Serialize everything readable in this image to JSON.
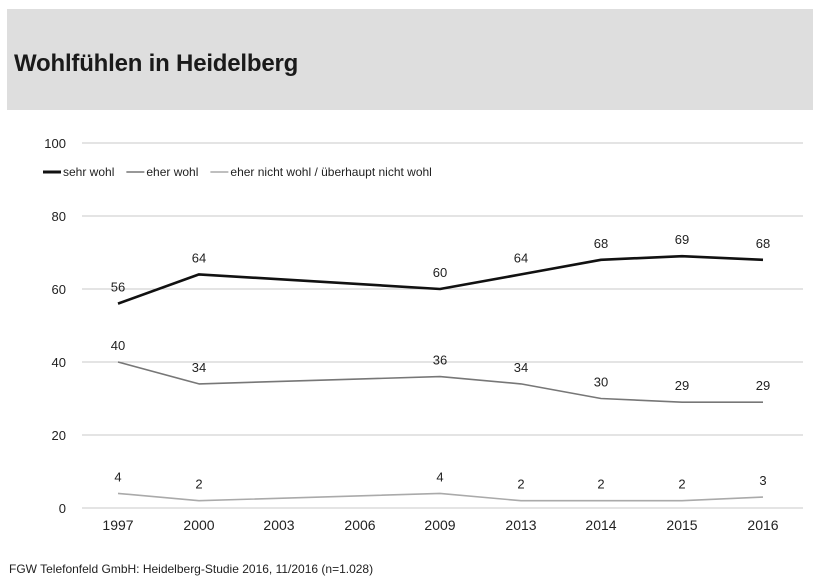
{
  "header": {
    "title": "Wohlfühlen in Heidelberg"
  },
  "footer": {
    "source": "FGW Telefonfeld GmbH: Heidelberg-Studie 2016, 11/2016 (n=1.028)"
  },
  "chart_data": {
    "type": "line",
    "title": "Wohlfühlen in Heidelberg",
    "xlabel": "",
    "ylabel": "",
    "ylim": [
      0,
      100
    ],
    "yticks": [
      0,
      20,
      40,
      60,
      80,
      100
    ],
    "categories": [
      "1997",
      "2000",
      "2003",
      "2006",
      "2009",
      "2013",
      "2014",
      "2015",
      "2016"
    ],
    "grid": true,
    "legend_position": "top-left",
    "series": [
      {
        "name": "sehr wohl",
        "color": "#111111",
        "values": [
          56,
          64,
          null,
          null,
          60,
          64,
          68,
          69,
          68
        ],
        "labels": [
          "56",
          "64",
          "",
          "",
          "60",
          "64",
          "68",
          "69",
          "68"
        ]
      },
      {
        "name": "eher wohl",
        "color": "#777777",
        "values": [
          40,
          34,
          null,
          null,
          36,
          34,
          30,
          29,
          29
        ],
        "labels": [
          "40",
          "34",
          "",
          "",
          "36",
          "34",
          "30",
          "29",
          "29"
        ]
      },
      {
        "name": "eher nicht wohl / überhaupt nicht wohl",
        "color": "#aaaaaa",
        "values": [
          4,
          2,
          null,
          null,
          4,
          2,
          2,
          2,
          3
        ],
        "labels": [
          "4",
          "2",
          "",
          "",
          "4",
          "2",
          "2",
          "2",
          "3"
        ]
      }
    ]
  }
}
